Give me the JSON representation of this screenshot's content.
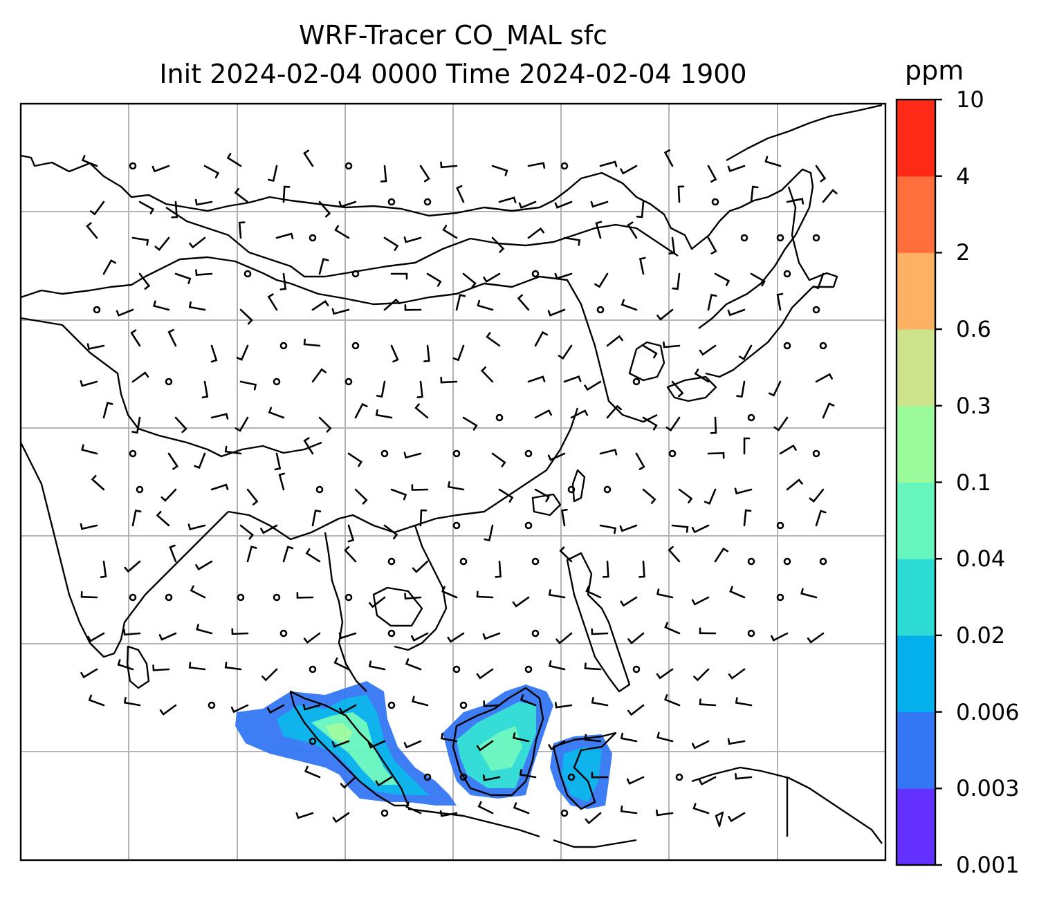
{
  "title_line1": "WRF-Tracer CO_MAL sfc",
  "title_line2": "Init 2024-02-04 0000 Time 2024-02-04 1900",
  "colorbar": {
    "unit": "ppm",
    "levels": [
      "0.001",
      "0.003",
      "0.006",
      "0.02",
      "0.04",
      "0.1",
      "0.3",
      "0.6",
      "2",
      "4",
      "10"
    ],
    "colors": [
      "#6430ff",
      "#3477f4",
      "#04b0ec",
      "#2cdcd4",
      "#66f6be",
      "#9afb9a",
      "#cde389",
      "#fdb163",
      "#ff6e3b",
      "#ff2a15"
    ]
  },
  "map": {
    "gridlines": true,
    "coastlines": true,
    "wind_barbs": true,
    "plume_colors": {
      "low": "#6430ff",
      "mid": "#3477f4",
      "high": "#66f6be",
      "peak": "#9afb9a"
    }
  }
}
